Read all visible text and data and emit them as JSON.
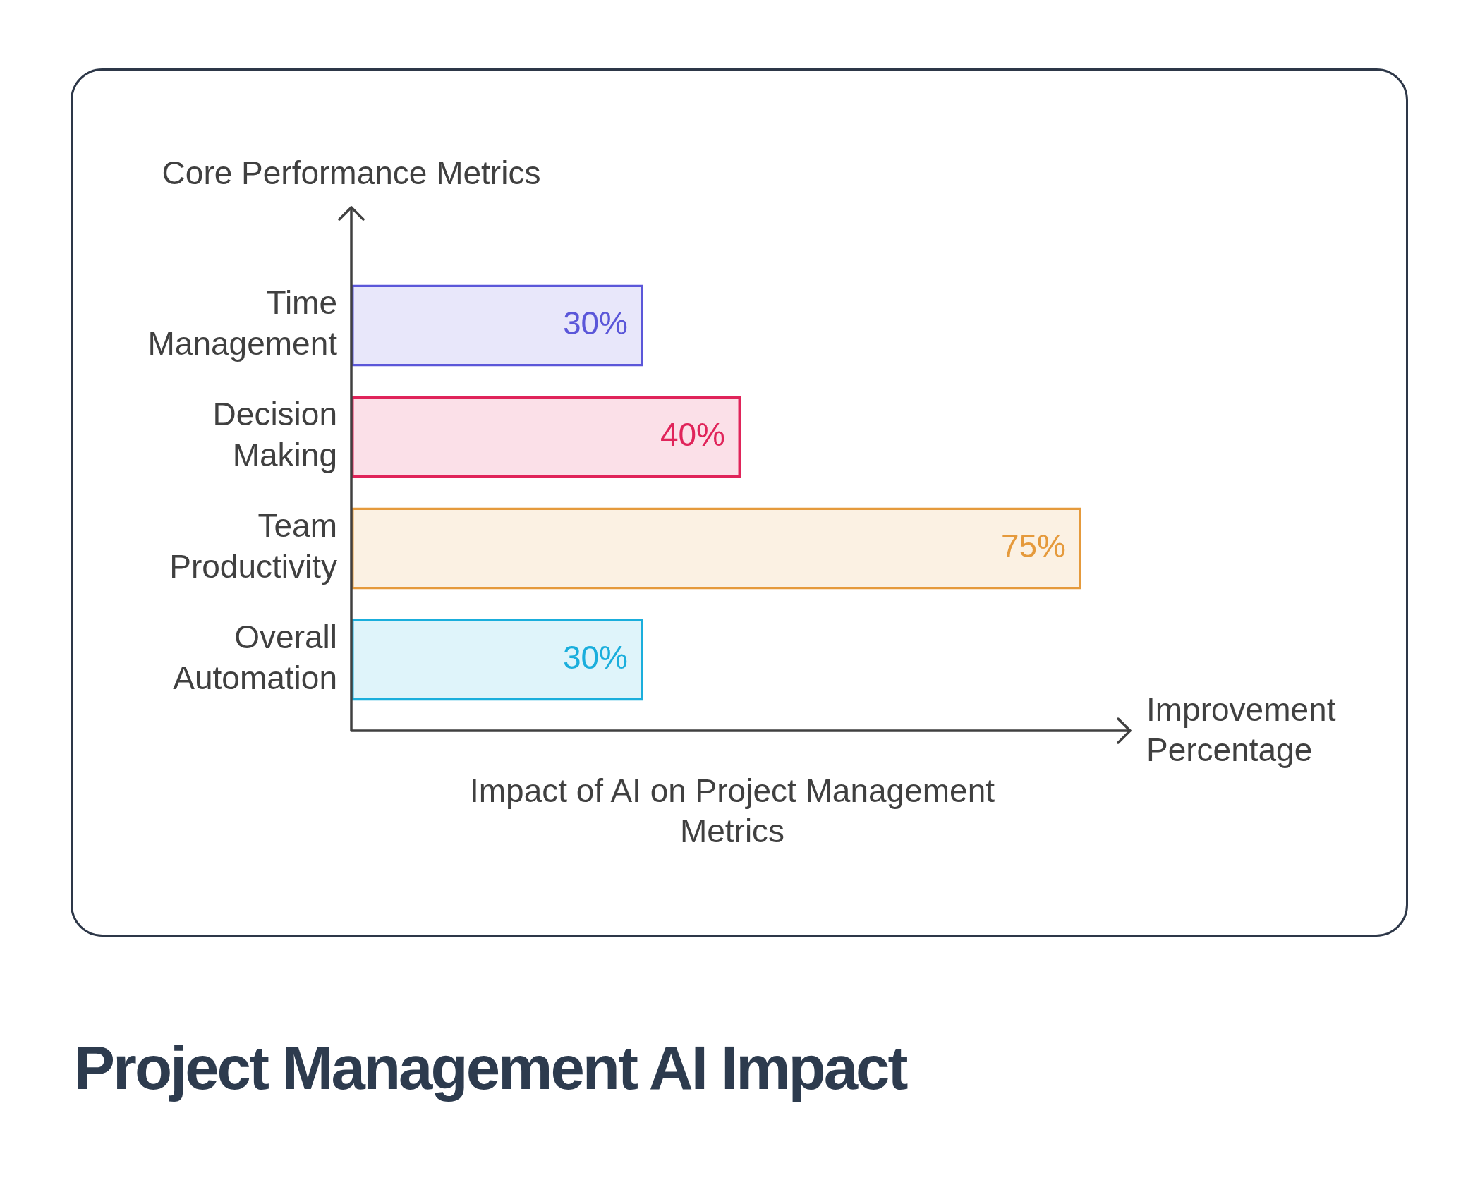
{
  "chart_data": {
    "type": "bar",
    "orientation": "horizontal",
    "title": "Project Management AI Impact",
    "ylabel": "Core Performance Metrics",
    "xlabel": "Improvement Percentage",
    "annotations": [
      "Impact of AI on Project Management Metrics"
    ],
    "categories": [
      "Time Management",
      "Decision Making",
      "Team Productivity",
      "Overall Automation"
    ],
    "values": [
      30,
      40,
      75,
      30
    ],
    "colors": [
      "#5b57d9",
      "#e0245a",
      "#e59a3c",
      "#1aaedc"
    ],
    "value_labels": [
      "30%",
      "40%",
      "75%",
      "30%"
    ],
    "xlim": [
      0,
      80
    ],
    "tick_labels": "y"
  }
}
